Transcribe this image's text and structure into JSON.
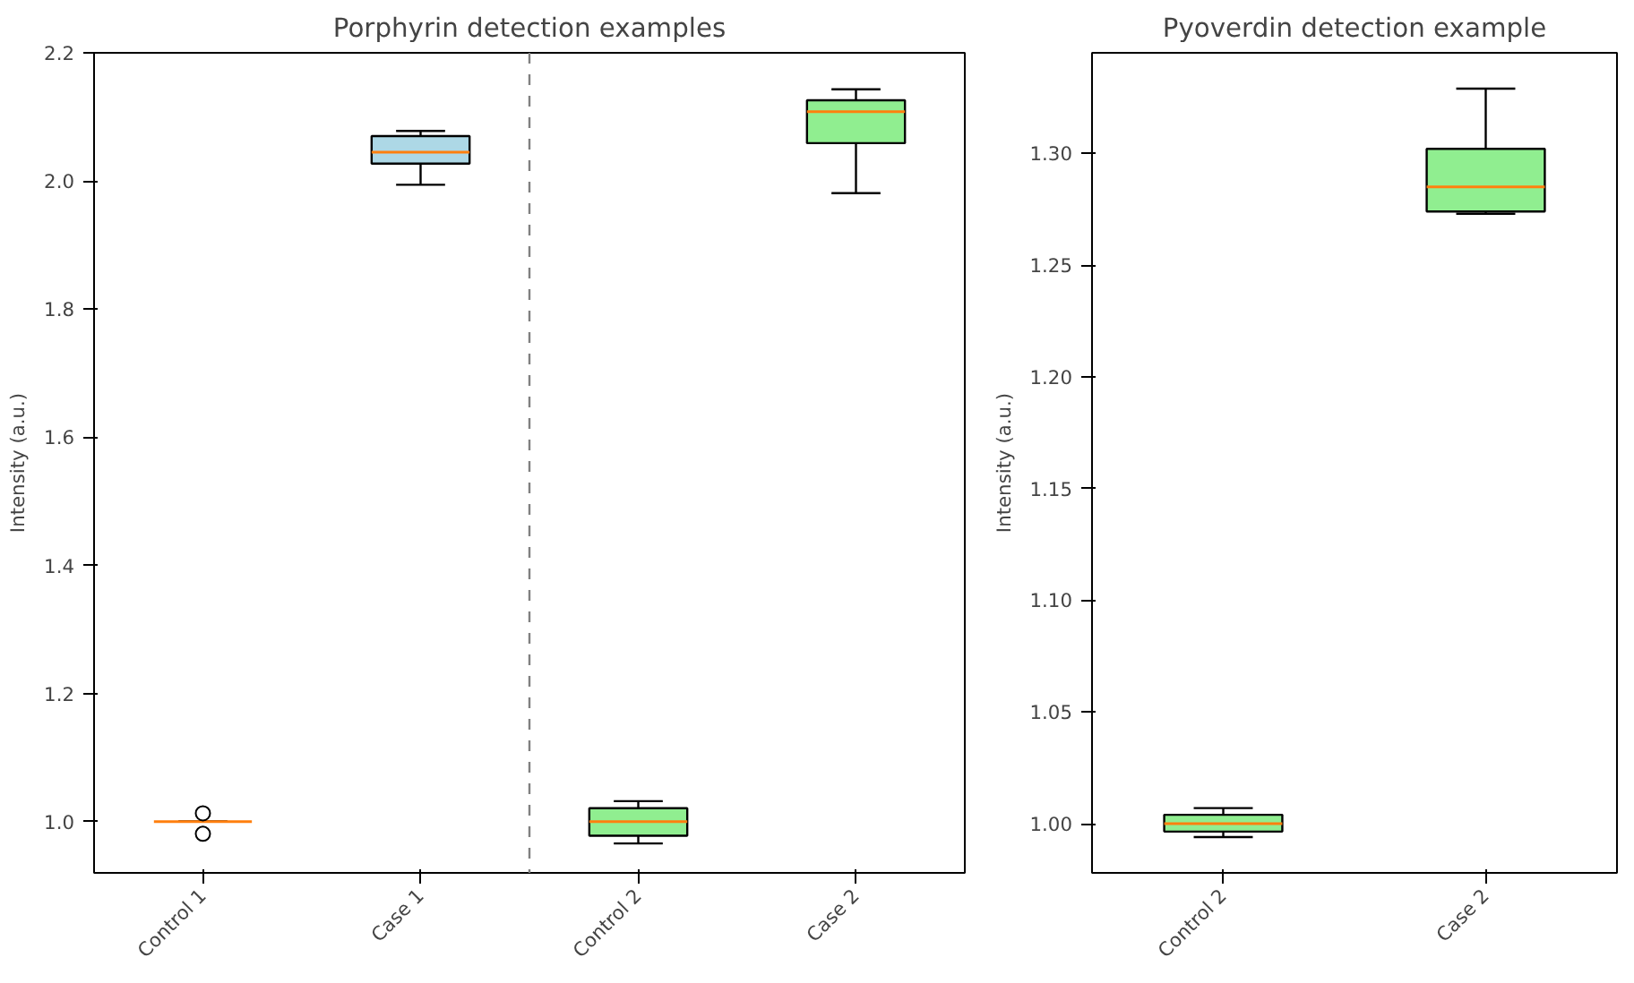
{
  "chart_data": [
    {
      "type": "box",
      "title": "Porphyrin detection examples",
      "ylabel": "Intensity (a.u.)",
      "categories": [
        "Control 1",
        "Case 1",
        "Control 2",
        "Case 2"
      ],
      "boxes": [
        {
          "low": 1.0,
          "q1": 1.0,
          "median": 1.0,
          "q3": 1.0,
          "high": 1.0,
          "outliers": [
            1.013,
            0.981
          ]
        },
        {
          "low": 1.994,
          "q1": 2.027,
          "median": 2.045,
          "q3": 2.07,
          "high": 2.078
        },
        {
          "low": 0.966,
          "q1": 0.978,
          "median": 1.0,
          "q3": 1.021,
          "high": 1.032
        },
        {
          "low": 1.981,
          "q1": 2.059,
          "median": 2.108,
          "q3": 2.126,
          "high": 2.143
        }
      ],
      "colors": [
        null,
        "#add8e6",
        "#90ee90",
        "#90ee90"
      ],
      "ylim": [
        0.92,
        2.2
      ],
      "yticks": [
        {
          "value": 1.0,
          "label": "1.0"
        },
        {
          "value": 1.2,
          "label": "1.2"
        },
        {
          "value": 1.4,
          "label": "1.4"
        },
        {
          "value": 1.6,
          "label": "1.6"
        },
        {
          "value": 1.8,
          "label": "1.8"
        },
        {
          "value": 2.0,
          "label": "2.0"
        },
        {
          "value": 2.2,
          "label": "2.2"
        }
      ],
      "grid": false
    },
    {
      "type": "box",
      "title": "Pyoverdin detection example",
      "ylabel": "Intensity (a.u.)",
      "categories": [
        "Control 2",
        "Case 2"
      ],
      "boxes": [
        {
          "low": 0.994,
          "q1": 0.9965,
          "median": 1.0,
          "q3": 1.004,
          "high": 1.007
        },
        {
          "low": 1.273,
          "q1": 1.274,
          "median": 1.285,
          "q3": 1.302,
          "high": 1.329
        }
      ],
      "colors": [
        "#90ee90",
        "#90ee90"
      ],
      "ylim": [
        0.978,
        1.345
      ],
      "grid": false,
      "yticks": [
        {
          "value": 1.0,
          "label": "1.00"
        },
        {
          "value": 1.05,
          "label": "1.05"
        },
        {
          "value": 1.1,
          "label": "1.10"
        },
        {
          "value": 1.15,
          "label": "1.15"
        },
        {
          "value": 1.2,
          "label": "1.20"
        },
        {
          "value": 1.25,
          "label": "1.25"
        },
        {
          "value": 1.3,
          "label": "1.30"
        }
      ]
    }
  ]
}
